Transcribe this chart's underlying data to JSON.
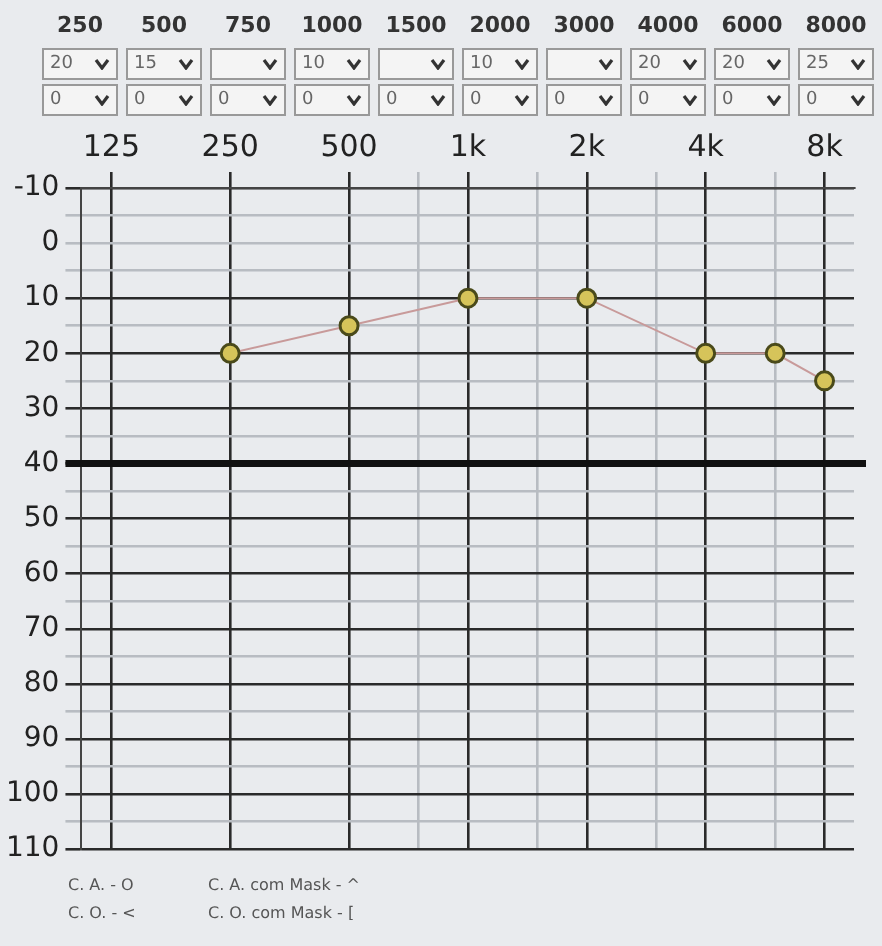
{
  "chart_data": [
    {
      "type": "heatmap",
      "categories": [
        "250",
        "500",
        "750",
        "1000",
        "1500",
        "2000",
        "3000",
        "4000",
        "6000",
        "8000"
      ],
      "y_categories": [
        null,
        null
      ],
      "data_labels": true,
      "cells": [
        [
          20,
          15,
          null,
          10,
          null,
          10,
          null,
          20,
          20,
          25
        ],
        [
          0,
          0,
          0,
          0,
          0,
          0,
          0,
          0,
          0,
          0
        ]
      ]
    },
    {
      "type": "line",
      "x": [
        250,
        500,
        1000,
        2000,
        4000,
        6000,
        8000
      ],
      "series": [
        {
          "color": "#c89a9a",
          "colors": [
            "#d6c45a",
            "#d6c45a",
            "#d6c45a",
            "#d6c45a",
            "#d6c45a",
            "#d6c45a",
            "#d6c45a"
          ],
          "values": [
            20,
            15,
            10,
            10,
            20,
            20,
            25
          ]
        }
      ],
      "marker": "circle",
      "log": "x",
      "grid": true,
      "legend": false,
      "xlim": [
        105,
        9500
      ],
      "xticks": [
        125,
        250,
        500,
        {
          "value": 750,
          "label": null
        },
        {
          "value": 1000,
          "label": "1k"
        },
        {
          "value": 1500,
          "label": null
        },
        {
          "value": 2000,
          "label": "2k"
        },
        {
          "value": 3000,
          "label": null
        },
        {
          "value": 4000,
          "label": "4k"
        },
        {
          "value": 6000,
          "label": null
        },
        {
          "value": 8000,
          "label": "8k"
        }
      ],
      "ylim": [
        110,
        -10
      ],
      "yticks": [
        -10,
        {
          "value": -5,
          "label": null
        },
        0,
        {
          "value": 5,
          "label": null
        },
        10,
        {
          "value": 15,
          "label": null
        },
        20,
        {
          "value": 25,
          "label": null
        },
        30,
        {
          "value": 35,
          "label": null
        },
        40,
        {
          "value": 45,
          "label": null
        },
        50,
        {
          "value": 55,
          "label": null
        },
        60,
        {
          "value": 65,
          "label": null
        },
        70,
        {
          "value": 75,
          "label": null
        },
        80,
        {
          "value": 85,
          "label": null
        },
        90,
        {
          "value": 95,
          "label": null
        },
        100,
        {
          "value": 105,
          "label": null
        },
        110
      ],
      "ref_lines": [
        {
          "axis": "y",
          "value": 40,
          "color": "#111111"
        }
      ],
      "annotations": [
        "C. A. - O",
        "C. A. com Mask - ^",
        "C. O. - <",
        "C. O. com Mask - ["
      ]
    }
  ]
}
